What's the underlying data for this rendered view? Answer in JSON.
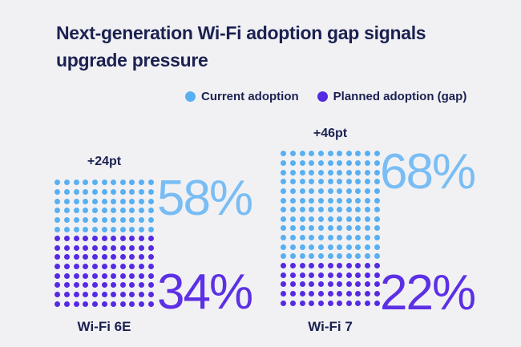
{
  "title_lines": [
    "Next-generation Wi-Fi adoption gap signals",
    "upgrade pressure"
  ],
  "colors": {
    "dot_blue": "#58b0f1",
    "dot_purple": "#5629e2",
    "num_blue": "#79bdf4",
    "num_purple": "#5c30e4",
    "text_navy": "#1b2150",
    "background": "#f1f1f4"
  },
  "legend": {
    "items": [
      {
        "label": "Current adoption",
        "color": "#58b0f1"
      },
      {
        "label": "Planned adoption (gap)",
        "color": "#5629e2"
      }
    ]
  },
  "columns": [
    {
      "category": "Wi-Fi 6E",
      "gap_label": "+24pt",
      "current_pct": "58%",
      "planned_pct": "34%",
      "current_rows": 6,
      "planned_rows": 8
    },
    {
      "category": "Wi-Fi 7",
      "gap_label": "+46pt",
      "current_pct": "68%",
      "planned_pct": "22%",
      "current_rows": 12,
      "planned_rows": 5
    }
  ],
  "chart_data": {
    "type": "bar",
    "subtype": "dot-pictogram",
    "title": "Next-generation Wi-Fi adoption gap signals upgrade pressure",
    "categories": [
      "Wi-Fi 6E",
      "Wi-Fi 7"
    ],
    "series": [
      {
        "name": "Current adoption",
        "values": [
          58,
          68
        ],
        "unit": "%",
        "color": "#58b0f1"
      },
      {
        "name": "Planned adoption (gap)",
        "values": [
          34,
          22
        ],
        "unit": "%",
        "color": "#5629e2"
      }
    ],
    "annotations": [
      "+24pt",
      "+46pt"
    ],
    "legend_position": "top",
    "grid": false,
    "dot_grid": {
      "columns": 11,
      "dot_rows": [
        {
          "category": "Wi-Fi 6E",
          "current": 6,
          "planned": 8
        },
        {
          "category": "Wi-Fi 7",
          "current": 12,
          "planned": 5
        }
      ]
    }
  }
}
